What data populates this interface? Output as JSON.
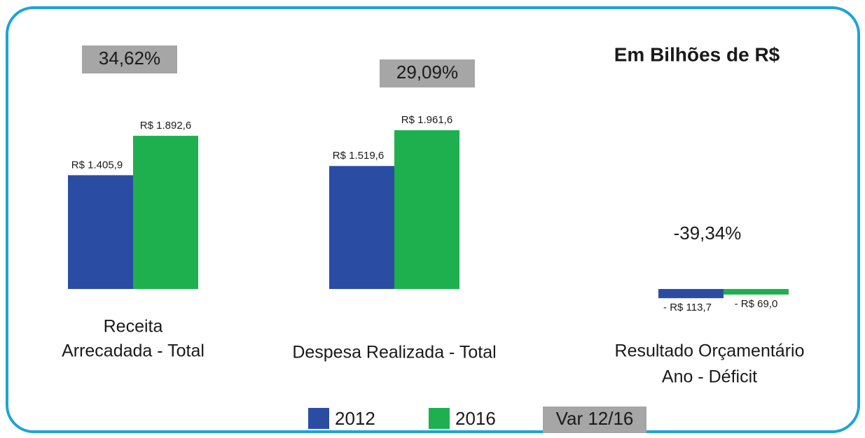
{
  "chart_data": {
    "type": "bar",
    "title": "Em Bilhões de R$",
    "categories": [
      [
        "Receita",
        "Arrecadada - Total"
      ],
      [
        "Despesa Realizada - Total"
      ],
      [
        "Resultado Orçamentário",
        "Ano - Déficit"
      ]
    ],
    "series": [
      {
        "name": "2012",
        "color": "#2a4da3",
        "values": [
          1405.9,
          1519.6,
          -113.7
        ],
        "value_labels": [
          "R$ 1.405,9",
          "R$ 1.519,6",
          "- R$ 113,7"
        ]
      },
      {
        "name": "2016",
        "color": "#1eb04f",
        "values": [
          1892.6,
          1961.6,
          -69.0
        ],
        "value_labels": [
          "R$ 1.892,6",
          "R$ 1.961,6",
          "- R$ 69,0"
        ]
      }
    ],
    "variation": {
      "name": "Var 12/16",
      "color": "#a6a6a6",
      "values": [
        34.62,
        29.09,
        -39.34
      ],
      "value_labels": [
        "34,62%",
        "29,09%",
        "-39,34%"
      ]
    },
    "ylim": [
      -100,
      3000
    ]
  }
}
